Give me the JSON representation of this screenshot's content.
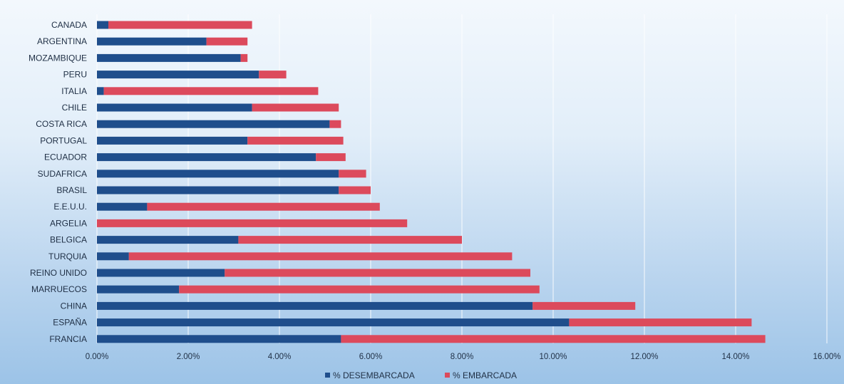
{
  "chart_data": {
    "type": "bar",
    "orientation": "horizontal",
    "stacked": true,
    "categories": [
      "CANADA",
      "ARGENTINA",
      "MOZAMBIQUE",
      "PERU",
      "ITALIA",
      "CHILE",
      "COSTA RICA",
      "PORTUGAL",
      "ECUADOR",
      "SUDAFRICA",
      "BRASIL",
      "E.E.U.U.",
      "ARGELIA",
      "BELGICA",
      "TURQUIA",
      "REINO UNIDO",
      "MARRUECOS",
      "CHINA",
      "ESPAÑA",
      "FRANCIA"
    ],
    "series": [
      {
        "name": "% DESEMBARCADA",
        "color": "#1f4e8c",
        "values": [
          0.25,
          2.4,
          3.15,
          3.55,
          0.15,
          3.4,
          5.1,
          3.3,
          4.8,
          5.3,
          5.3,
          1.1,
          0.0,
          3.1,
          0.7,
          2.8,
          1.8,
          9.55,
          10.35,
          5.35
        ]
      },
      {
        "name": "% EMBARCADA",
        "color": "#dc4a5c",
        "values": [
          3.15,
          0.9,
          0.15,
          0.6,
          4.7,
          1.9,
          0.25,
          2.1,
          0.65,
          0.6,
          0.7,
          5.1,
          6.8,
          4.9,
          8.4,
          6.7,
          7.9,
          2.25,
          4.0,
          9.3
        ]
      }
    ],
    "xlim": [
      0,
      16
    ],
    "x_ticks": [
      "0.00%",
      "2.00%",
      "4.00%",
      "6.00%",
      "8.00%",
      "10.00%",
      "12.00%",
      "14.00%",
      "16.00%"
    ],
    "grid": true,
    "legend_position": "bottom",
    "title": "",
    "xlabel": "",
    "ylabel": ""
  }
}
